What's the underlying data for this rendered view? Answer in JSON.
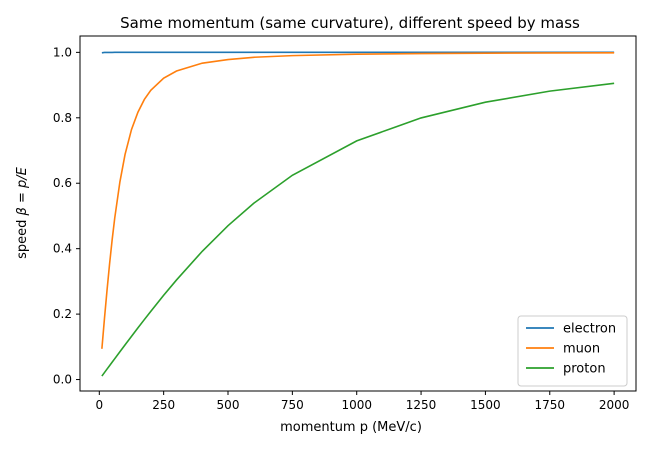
{
  "chart_data": {
    "type": "line",
    "title": "Same momentum (same curvature), different speed by mass",
    "xlabel": "momentum p (MeV/c)",
    "ylabel_prefix": "speed ",
    "ylabel_math": "β = p/E",
    "xlim": [
      -75,
      2085
    ],
    "ylim": [
      -0.035,
      1.05
    ],
    "xticks": [
      0,
      250,
      500,
      750,
      1000,
      1250,
      1500,
      1750,
      2000
    ],
    "yticks": [
      0.0,
      0.2,
      0.4,
      0.6,
      0.8,
      1.0
    ],
    "ytick_labels": [
      "0.0",
      "0.2",
      "0.4",
      "0.6",
      "0.8",
      "1.0"
    ],
    "grid": false,
    "legend_position": "lower-right",
    "x": [
      10,
      20,
      30,
      40,
      50,
      60,
      80,
      100,
      125,
      150,
      175,
      200,
      250,
      300,
      400,
      500,
      600,
      750,
      1000,
      1250,
      1500,
      1750,
      2000
    ],
    "series": [
      {
        "name": "electron",
        "color": "#1f77b4",
        "values": [
          0.9987,
          0.9997,
          0.9999,
          0.9999,
          0.9999,
          1.0,
          1.0,
          1.0,
          1.0,
          1.0,
          1.0,
          1.0,
          1.0,
          1.0,
          1.0,
          1.0,
          1.0,
          1.0,
          1.0,
          1.0,
          1.0,
          1.0,
          1.0
        ]
      },
      {
        "name": "muon",
        "color": "#ff7f0e",
        "values": [
          0.094,
          0.186,
          0.273,
          0.354,
          0.428,
          0.494,
          0.604,
          0.688,
          0.764,
          0.817,
          0.856,
          0.884,
          0.921,
          0.943,
          0.967,
          0.978,
          0.985,
          0.99,
          0.9944,
          0.9964,
          0.9975,
          0.9982,
          0.9986
        ]
      },
      {
        "name": "proton",
        "color": "#2ca02c",
        "values": [
          0.0107,
          0.0213,
          0.032,
          0.0426,
          0.0532,
          0.0638,
          0.0849,
          0.1059,
          0.132,
          0.1578,
          0.1833,
          0.2085,
          0.2575,
          0.3044,
          0.3921,
          0.4702,
          0.5388,
          0.6244,
          0.7295,
          0.7996,
          0.8477,
          0.8815,
          0.9053
        ]
      }
    ]
  }
}
